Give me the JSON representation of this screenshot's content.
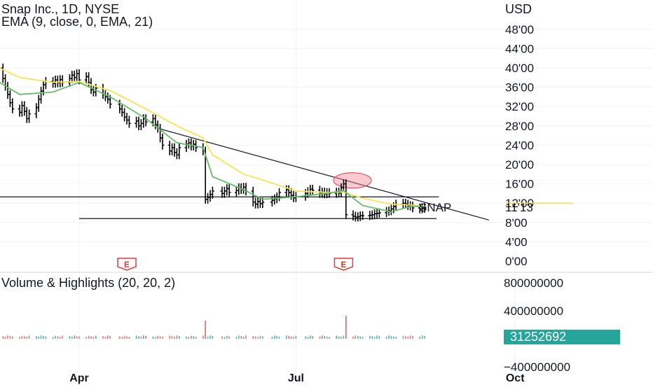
{
  "header": {
    "symbol_line": "Snap Inc., 1D, NYSE",
    "indicator_line": "EMA (9, close, 0, EMA, 21)",
    "currency": "USD"
  },
  "volume_pane": {
    "title": "Volume & Highlights (20, 20, 2)",
    "last_volume_label": "31252692"
  },
  "symbol_label": "SNAP",
  "price_badge": "11'13",
  "earnings_markers": [
    {
      "label": "E",
      "date": "2022-04-21"
    },
    {
      "label": "E",
      "date": "2022-07-21"
    }
  ],
  "colors": {
    "ema_fast": "#66bb6a",
    "ema_slow": "#f5e556",
    "price_line": "#ffd54f",
    "earnings": "#e53935",
    "highlight_circle": "#f28b9a",
    "last_volume_badge": "#26a69a"
  },
  "chart_data": [
    {
      "type": "ohlc",
      "title": "Snap Inc., 1D, NYSE",
      "ylabel": "USD",
      "x_tick_labels": [
        "Apr",
        "Jul",
        "Oct"
      ],
      "y_tick_labels": [
        "0'00",
        "4'00",
        "8'00",
        "12'00",
        "16'00",
        "20'00",
        "24'00",
        "28'00",
        "32'00",
        "36'00",
        "40'00",
        "44'00",
        "48'00"
      ],
      "ylim": [
        0,
        50
      ],
      "last_price": 11.13,
      "series": [
        {
          "name": "Price",
          "points": [
            [
              "2022-02-18",
              40.5
            ],
            [
              "2022-02-22",
              39.2
            ],
            [
              "2022-02-23",
              40.8
            ],
            [
              "2022-02-24",
              41.5
            ],
            [
              "2022-02-25",
              40.0
            ],
            [
              "2022-02-28",
              37.8
            ],
            [
              "2022-03-01",
              36.2
            ],
            [
              "2022-03-02",
              34.5
            ],
            [
              "2022-03-03",
              32.8
            ],
            [
              "2022-03-04",
              31.5
            ],
            [
              "2022-03-07",
              30.8
            ],
            [
              "2022-03-08",
              32.2
            ],
            [
              "2022-03-09",
              31.0
            ],
            [
              "2022-03-10",
              29.5
            ],
            [
              "2022-03-11",
              30.5
            ],
            [
              "2022-03-14",
              31.8
            ],
            [
              "2022-03-15",
              33.5
            ],
            [
              "2022-03-16",
              35.2
            ],
            [
              "2022-03-17",
              36.5
            ],
            [
              "2022-03-18",
              37.2
            ],
            [
              "2022-03-21",
              36.8
            ],
            [
              "2022-03-22",
              37.5
            ],
            [
              "2022-03-23",
              36.9
            ],
            [
              "2022-03-24",
              37.6
            ],
            [
              "2022-03-25",
              37.0
            ],
            [
              "2022-03-28",
              37.8
            ],
            [
              "2022-03-29",
              38.5
            ],
            [
              "2022-03-30",
              38.0
            ],
            [
              "2022-03-31",
              38.8
            ],
            [
              "2022-04-01",
              37.5
            ],
            [
              "2022-04-04",
              38.2
            ],
            [
              "2022-04-05",
              37.0
            ],
            [
              "2022-04-06",
              35.5
            ],
            [
              "2022-04-07",
              35.0
            ],
            [
              "2022-04-08",
              35.8
            ],
            [
              "2022-04-11",
              34.5
            ],
            [
              "2022-04-12",
              34.0
            ],
            [
              "2022-04-13",
              33.5
            ],
            [
              "2022-04-14",
              32.5
            ],
            [
              "2022-04-18",
              31.5
            ],
            [
              "2022-04-19",
              30.8
            ],
            [
              "2022-04-20",
              29.8
            ],
            [
              "2022-04-21",
              29.2
            ],
            [
              "2022-04-22",
              28.5
            ],
            [
              "2022-04-25",
              29.0
            ],
            [
              "2022-04-26",
              28.0
            ],
            [
              "2022-04-27",
              28.5
            ],
            [
              "2022-04-28",
              29.5
            ],
            [
              "2022-04-29",
              28.8
            ],
            [
              "2022-05-02",
              29.5
            ],
            [
              "2022-05-03",
              28.2
            ],
            [
              "2022-05-04",
              27.5
            ],
            [
              "2022-05-05",
              25.5
            ],
            [
              "2022-05-06",
              24.0
            ],
            [
              "2022-05-09",
              22.8
            ],
            [
              "2022-05-10",
              23.5
            ],
            [
              "2022-05-11",
              22.5
            ],
            [
              "2022-05-12",
              22.0
            ],
            [
              "2022-05-13",
              23.5
            ],
            [
              "2022-05-16",
              24.2
            ],
            [
              "2022-05-17",
              24.5
            ],
            [
              "2022-05-18",
              23.8
            ],
            [
              "2022-05-19",
              24.2
            ],
            [
              "2022-05-20",
              23.5
            ],
            [
              "2022-05-23",
              22.8
            ],
            [
              "2022-05-24",
              12.8
            ],
            [
              "2022-05-25",
              13.2
            ],
            [
              "2022-05-26",
              13.8
            ],
            [
              "2022-05-27",
              14.5
            ],
            [
              "2022-05-31",
              14.0
            ],
            [
              "2022-06-01",
              14.5
            ],
            [
              "2022-06-02",
              15.0
            ],
            [
              "2022-06-03",
              14.2
            ],
            [
              "2022-06-06",
              14.6
            ],
            [
              "2022-06-07",
              15.2
            ],
            [
              "2022-06-08",
              14.8
            ],
            [
              "2022-06-09",
              15.3
            ],
            [
              "2022-06-10",
              14.5
            ],
            [
              "2022-06-13",
              12.2
            ],
            [
              "2022-06-14",
              11.8
            ],
            [
              "2022-06-15",
              12.3
            ],
            [
              "2022-06-16",
              11.9
            ],
            [
              "2022-06-17",
              12.2
            ],
            [
              "2022-06-21",
              12.6
            ],
            [
              "2022-06-22",
              12.9
            ],
            [
              "2022-06-23",
              13.3
            ],
            [
              "2022-06-24",
              14.2
            ],
            [
              "2022-06-27",
              14.8
            ],
            [
              "2022-06-28",
              14.2
            ],
            [
              "2022-06-29",
              13.6
            ],
            [
              "2022-06-30",
              13.1
            ],
            [
              "2022-07-01",
              13.4
            ],
            [
              "2022-07-05",
              14.0
            ],
            [
              "2022-07-06",
              14.4
            ],
            [
              "2022-07-07",
              14.9
            ],
            [
              "2022-07-08",
              14.7
            ],
            [
              "2022-07-11",
              14.0
            ],
            [
              "2022-07-12",
              14.3
            ],
            [
              "2022-07-13",
              13.9
            ],
            [
              "2022-07-14",
              14.2
            ],
            [
              "2022-07-15",
              14.0
            ],
            [
              "2022-07-18",
              14.3
            ],
            [
              "2022-07-19",
              14.1
            ],
            [
              "2022-07-20",
              15.2
            ],
            [
              "2022-07-21",
              16.0
            ],
            [
              "2022-07-22",
              9.6
            ],
            [
              "2022-07-25",
              9.3
            ],
            [
              "2022-07-26",
              9.1
            ],
            [
              "2022-07-27",
              9.2
            ],
            [
              "2022-07-28",
              9.4
            ],
            [
              "2022-07-29",
              9.4
            ],
            [
              "2022-08-01",
              9.5
            ],
            [
              "2022-08-02",
              9.6
            ],
            [
              "2022-08-03",
              9.8
            ],
            [
              "2022-08-04",
              9.9
            ],
            [
              "2022-08-05",
              10.0
            ],
            [
              "2022-08-08",
              10.3
            ],
            [
              "2022-08-09",
              10.4
            ],
            [
              "2022-08-10",
              10.8
            ],
            [
              "2022-08-11",
              11.3
            ],
            [
              "2022-08-12",
              11.8
            ],
            [
              "2022-08-15",
              12.0
            ],
            [
              "2022-08-16",
              11.8
            ],
            [
              "2022-08-17",
              11.5
            ],
            [
              "2022-08-18",
              11.4
            ],
            [
              "2022-08-19",
              11.0
            ],
            [
              "2022-08-22",
              10.8
            ],
            [
              "2022-08-23",
              10.9
            ],
            [
              "2022-08-24",
              11.13
            ]
          ]
        },
        {
          "name": "EMA 9",
          "points": [
            [
              "2022-02-18",
              39.5
            ],
            [
              "2022-03-07",
              34.5
            ],
            [
              "2022-03-21",
              35.0
            ],
            [
              "2022-04-01",
              37.0
            ],
            [
              "2022-04-14",
              34.0
            ],
            [
              "2022-04-29",
              29.5
            ],
            [
              "2022-05-12",
              24.5
            ],
            [
              "2022-05-23",
              23.5
            ],
            [
              "2022-05-27",
              17.5
            ],
            [
              "2022-06-09",
              14.8
            ],
            [
              "2022-06-17",
              12.8
            ],
            [
              "2022-07-01",
              13.3
            ],
            [
              "2022-07-15",
              14.1
            ],
            [
              "2022-07-21",
              14.6
            ],
            [
              "2022-07-29",
              11.5
            ],
            [
              "2022-08-10",
              10.2
            ],
            [
              "2022-08-19",
              11.4
            ],
            [
              "2022-08-24",
              11.2
            ]
          ]
        },
        {
          "name": "EMA 21",
          "points": [
            [
              "2022-02-18",
              42.0
            ],
            [
              "2022-03-07",
              38.0
            ],
            [
              "2022-03-21",
              37.0
            ],
            [
              "2022-04-01",
              37.2
            ],
            [
              "2022-04-14",
              35.3
            ],
            [
              "2022-04-29",
              31.5
            ],
            [
              "2022-05-12",
              28.0
            ],
            [
              "2022-05-23",
              25.5
            ],
            [
              "2022-05-27",
              22.0
            ],
            [
              "2022-06-09",
              18.0
            ],
            [
              "2022-06-17",
              16.8
            ],
            [
              "2022-07-01",
              14.5
            ],
            [
              "2022-07-15",
              14.2
            ],
            [
              "2022-07-21",
              14.3
            ],
            [
              "2022-07-29",
              13.0
            ],
            [
              "2022-08-10",
              11.8
            ],
            [
              "2022-08-19",
              11.6
            ],
            [
              "2022-08-24",
              11.3
            ]
          ]
        }
      ],
      "annotations": [
        {
          "kind": "trendline",
          "from": [
            "2022-05-04",
            27.5
          ],
          "to": [
            "2022-09-20",
            8.5
          ]
        },
        {
          "kind": "horizontal",
          "from": "2022-02-25",
          "to": "2022-08-30",
          "y": 13.3
        },
        {
          "kind": "horizontal",
          "from": "2022-04-01",
          "to": "2022-08-29",
          "y": 8.8
        },
        {
          "kind": "circle",
          "center": [
            "2022-07-20",
            16.7
          ]
        }
      ]
    },
    {
      "type": "bar",
      "title": "Volume & Highlights (20, 20, 2)",
      "y_tick_labels": [
        "800000000",
        "400000000",
        "−400000000"
      ],
      "ylim": [
        -400000000,
        800000000
      ],
      "last_value": 31252692,
      "highlights": [
        {
          "x": "2022-05-24",
          "value": 260000000
        },
        {
          "x": "2022-07-22",
          "value": 330000000
        }
      ],
      "typical_value": 40000000
    }
  ]
}
